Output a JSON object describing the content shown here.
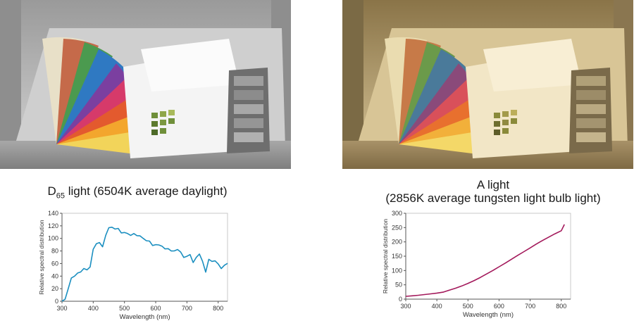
{
  "colors": {
    "d65_line": "#1b8fc0",
    "a_line": "#a3195b",
    "axis": "#555555"
  },
  "photos": {
    "d65": {
      "description_icon": "color-swatch-booth-daylight-icon"
    },
    "a": {
      "description_icon": "color-swatch-booth-tungsten-icon"
    }
  },
  "captions": {
    "d65": {
      "prefix": "D",
      "subscript": "65",
      "rest": " light (6504K average daylight)"
    },
    "a": {
      "line1": "A light",
      "line2": "(2856K average tungsten light bulb light)"
    }
  },
  "chart_data": [
    {
      "type": "line",
      "xlabel": "Wavelength (nm)",
      "ylabel": "Relative spectral distribution",
      "xlim": [
        300,
        830
      ],
      "ylim": [
        0,
        140
      ],
      "xticks": [
        300,
        400,
        500,
        600,
        700,
        800
      ],
      "yticks": [
        0,
        20,
        40,
        60,
        80,
        100,
        120,
        140
      ],
      "grid": false,
      "series": [
        {
          "x": [
            300,
            310,
            320,
            330,
            340,
            350,
            360,
            370,
            380,
            390,
            400,
            410,
            420,
            430,
            440,
            450,
            460,
            470,
            480,
            490,
            500,
            510,
            520,
            530,
            540,
            550,
            560,
            570,
            580,
            590,
            600,
            610,
            620,
            630,
            640,
            650,
            660,
            670,
            680,
            690,
            700,
            710,
            720,
            730,
            740,
            750,
            760,
            770,
            780,
            790,
            800,
            810,
            820,
            830
          ],
          "y": [
            0.03,
            3.3,
            20.2,
            37.1,
            39.9,
            44.9,
            46.6,
            52.1,
            50.0,
            54.6,
            82.8,
            91.5,
            93.4,
            86.7,
            104.9,
            117.0,
            117.8,
            114.9,
            115.9,
            108.8,
            109.4,
            107.8,
            104.8,
            107.7,
            104.4,
            104.0,
            100.0,
            96.3,
            95.8,
            88.7,
            90.0,
            89.6,
            87.7,
            83.3,
            83.7,
            80.0,
            80.2,
            82.3,
            78.3,
            69.7,
            71.6,
            74.3,
            61.6,
            69.9,
            75.1,
            63.6,
            46.4,
            66.8,
            63.4,
            64.3,
            59.5,
            52.0,
            57.4,
            60.3
          ]
        }
      ]
    },
    {
      "type": "line",
      "xlabel": "Wavelength (nm)",
      "ylabel": "Relative spectral distribution",
      "xlim": [
        300,
        830
      ],
      "ylim": [
        0,
        300
      ],
      "xticks": [
        300,
        400,
        500,
        600,
        700,
        800
      ],
      "yticks": [
        0,
        50,
        100,
        150,
        200,
        250,
        300
      ],
      "grid": false,
      "series": [
        {
          "x": [
            300,
            320,
            340,
            360,
            380,
            400,
            420,
            440,
            460,
            480,
            500,
            520,
            540,
            560,
            580,
            600,
            620,
            640,
            660,
            680,
            700,
            720,
            740,
            760,
            780,
            800,
            810
          ],
          "y": [
            9.8,
            11.6,
            13.6,
            15.9,
            18.4,
            21.2,
            24.3,
            31.5,
            38.2,
            46.0,
            55.0,
            65.0,
            76.0,
            88.0,
            100.0,
            113.0,
            126.0,
            139.5,
            153.0,
            166.0,
            179.0,
            192.5,
            205.0,
            217.0,
            228.5,
            239.0,
            261.0
          ]
        }
      ]
    }
  ]
}
